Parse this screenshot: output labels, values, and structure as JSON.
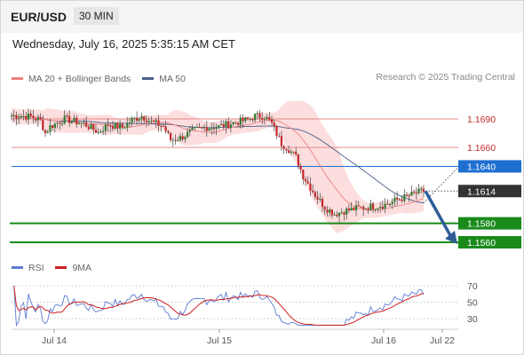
{
  "header": {
    "symbol": "EUR/USD",
    "timeframe": "30 MIN"
  },
  "datetime": "Wednesday, July 16, 2025 5:35:15 AM CET",
  "legend": {
    "ma20": "MA 20 + Bollinger Bands",
    "ma50": "MA 50",
    "credit": "Research © 2025 Trading Central"
  },
  "colors": {
    "up": "#2e7d32",
    "down": "#c62828",
    "ma20": "#f08080",
    "ma50": "#4a5f8a",
    "band": "#fbd3d3",
    "pivot_blue": "#1f6fd1",
    "target_green": "#1a8a1a",
    "current_tag": "#333333",
    "arrow": "#2f5d99",
    "resistance": "#e88a8a",
    "rsi": "#5b7bd5",
    "rsi_ma": "#cc1f1f"
  },
  "chart_data": {
    "type": "candlestick",
    "y_range": [
      1.5535,
      1.1713
    ],
    "x_labels": [
      "Jul 14",
      "Jul 15",
      "Jul 16",
      "Jul 22"
    ],
    "levels": [
      {
        "value": 1.169,
        "label": "1.1690",
        "kind": "resistance"
      },
      {
        "value": 1.166,
        "label": "1.1660",
        "kind": "resistance"
      },
      {
        "value": 1.164,
        "label": "1.1640",
        "kind": "pivot"
      },
      {
        "value": 1.1614,
        "label": "1.1614",
        "kind": "current"
      },
      {
        "value": 1.158,
        "label": "1.1580",
        "kind": "target"
      },
      {
        "value": 1.156,
        "label": "1.1560",
        "kind": "target"
      }
    ],
    "projection": {
      "from": 1.1614,
      "to": 1.156
    },
    "rsi": {
      "legend": [
        "RSI",
        "9MA"
      ],
      "ticks": [
        70,
        50,
        30
      ]
    }
  }
}
